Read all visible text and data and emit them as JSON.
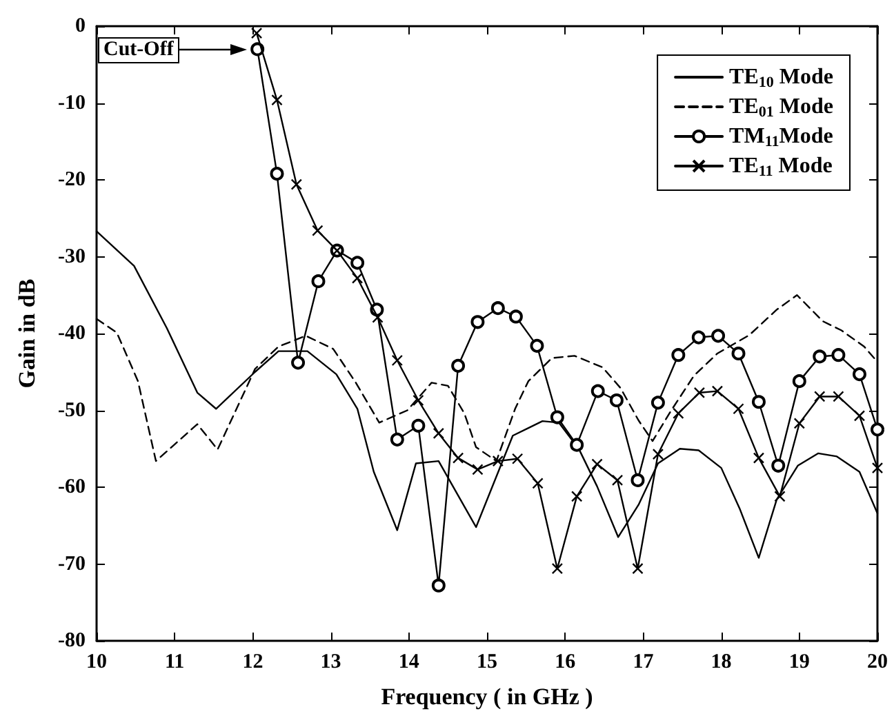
{
  "chart_data": {
    "type": "line",
    "xlabel": "Frequency ( in GHz )",
    "ylabel": "Gain in dB",
    "xlim": [
      10,
      20
    ],
    "xticks": [
      10,
      11,
      12,
      13,
      14,
      15,
      16,
      17,
      18,
      19,
      20
    ],
    "ylim": [
      -80,
      0
    ],
    "yticks": [
      -80,
      -70,
      -60,
      -50,
      -40,
      -30,
      -20,
      -10,
      0
    ],
    "grid": false,
    "legend": "top right",
    "annotations": [
      "Cut-Off"
    ],
    "series": [
      {
        "name": "TE$_{10}$ Mode",
        "color": "#000000",
        "line_style": "solid",
        "marker": "none",
        "x": [
          10,
          10.48,
          10.9,
          11.29,
          11.53,
          12.03,
          12.33,
          12.7,
          13.07,
          13.34,
          13.55,
          13.85,
          14.09,
          14.38,
          14.86,
          15.33,
          15.71,
          15.92,
          16.18,
          16.41,
          16.68,
          16.94,
          17.19,
          17.47,
          17.71,
          18.0,
          18.24,
          18.48,
          18.71,
          18.98,
          19.24,
          19.48,
          19.77,
          20.0
        ],
        "values": [
          -26.7,
          -31.2,
          -39.3,
          -47.7,
          -49.8,
          -45,
          -42.3,
          -42.3,
          -45.3,
          -49.8,
          -58,
          -65.6,
          -56.9,
          -56.6,
          -65.2,
          -53.3,
          -51.4,
          -51.6,
          -55.1,
          -59.9,
          -66.5,
          -62.3,
          -56.9,
          -55,
          -55.2,
          -57.5,
          -62.9,
          -69.2,
          -61.6,
          -57.2,
          -55.6,
          -56,
          -58,
          -63.4
        ]
      },
      {
        "name": "TE$_{01}$ Mode",
        "color": "#000000",
        "line_style": "dashed",
        "marker": "none",
        "x": [
          10,
          10.26,
          10.53,
          10.76,
          11.29,
          11.55,
          12.03,
          12.33,
          12.68,
          13.03,
          13.32,
          13.62,
          13.98,
          14.29,
          14.5,
          14.71,
          14.86,
          15.12,
          15.36,
          15.53,
          15.83,
          16.12,
          16.48,
          16.71,
          16.94,
          17.12,
          17.36,
          17.65,
          17.95,
          18.36,
          18.71,
          18.97,
          19.3,
          19.54,
          19.83,
          20.0
        ],
        "values": [
          -38.1,
          -39.9,
          -46.2,
          -56.6,
          -51.8,
          -55.1,
          -44.6,
          -41.7,
          -40.3,
          -42,
          -46.4,
          -51.6,
          -50,
          -46.4,
          -46.8,
          -50.4,
          -54.8,
          -56.6,
          -49.8,
          -46.2,
          -43.2,
          -42.9,
          -44.4,
          -47.1,
          -51.3,
          -54,
          -50,
          -45.5,
          -42.6,
          -40.2,
          -36.9,
          -35,
          -38.4,
          -39.6,
          -41.7,
          -43.7
        ]
      },
      {
        "name": "TM$_{11}$Mode",
        "color": "#000000",
        "line_style": "solid",
        "marker": "circle",
        "x": [
          12.06,
          12.31,
          12.58,
          12.84,
          13.08,
          13.34,
          13.59,
          13.85,
          14.12,
          14.38,
          14.63,
          14.88,
          15.14,
          15.37,
          15.64,
          15.9,
          16.15,
          16.42,
          16.66,
          16.93,
          17.19,
          17.45,
          17.71,
          17.96,
          18.22,
          18.48,
          18.73,
          19.0,
          19.26,
          19.5,
          19.77,
          20.0
        ],
        "values": [
          -3.0,
          -19.2,
          -43.8,
          -33.2,
          -29.2,
          -30.8,
          -36.9,
          -53.8,
          -52,
          -72.8,
          -44.2,
          -38.5,
          -36.7,
          -37.8,
          -41.6,
          -50.9,
          -54.5,
          -47.5,
          -48.7,
          -59.1,
          -49,
          -42.8,
          -40.5,
          -40.3,
          -42.6,
          -48.9,
          -57.2,
          -46.2,
          -43,
          -42.8,
          -45.3,
          -52.5
        ]
      },
      {
        "name": "TE$_{11}$ Mode",
        "color": "#000000",
        "line_style": "solid",
        "marker": "cross",
        "x": [
          12.05,
          12.31,
          12.56,
          12.83,
          13.08,
          13.34,
          13.6,
          13.85,
          14.12,
          14.38,
          14.63,
          14.88,
          15.14,
          15.39,
          15.65,
          15.9,
          16.15,
          16.41,
          16.67,
          16.93,
          17.19,
          17.45,
          17.72,
          17.95,
          18.22,
          18.48,
          18.75,
          19.0,
          19.26,
          19.5,
          19.77,
          20.0
        ],
        "values": [
          -0.9,
          -9.6,
          -20.6,
          -26.6,
          -29.2,
          -32.8,
          -37.9,
          -43.5,
          -48.7,
          -53,
          -56.2,
          -57.7,
          -56.6,
          -56.3,
          -59.5,
          -70.6,
          -61.2,
          -57,
          -59.1,
          -70.6,
          -55.7,
          -50.4,
          -47.7,
          -47.5,
          -49.8,
          -56.2,
          -61.2,
          -51.7,
          -48.2,
          -48.2,
          -50.7,
          -57.5
        ]
      }
    ]
  }
}
